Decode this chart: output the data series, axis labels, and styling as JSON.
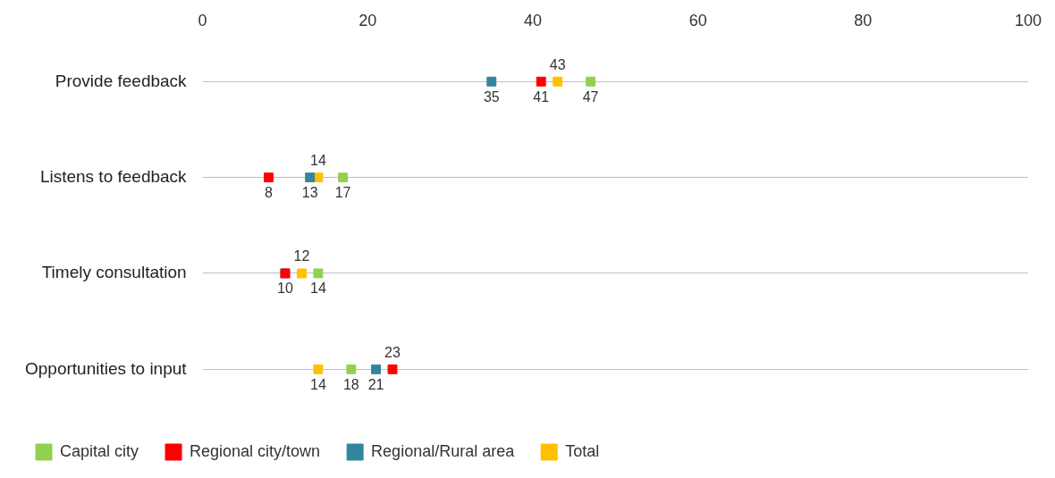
{
  "chart_data": {
    "type": "scatter",
    "orientation": "horizontal",
    "categories": [
      "Provide feedback",
      "Listens to feedback",
      "Timely consultation",
      "Opportunities to input"
    ],
    "series": [
      {
        "name": "Capital city",
        "color": "#92d050",
        "values": [
          47,
          17,
          14,
          18
        ],
        "value_labels": [
          "47",
          "17",
          "14",
          "18"
        ]
      },
      {
        "name": "Regional city/town",
        "color": "#ff0000",
        "values": [
          41,
          8,
          10,
          23
        ],
        "value_labels": [
          "41",
          "8",
          null,
          "23"
        ]
      },
      {
        "name": "Regional/Rural area",
        "color": "#31859c",
        "values": [
          35,
          13,
          10,
          21
        ],
        "value_labels": [
          "35",
          "13",
          "10",
          "21"
        ]
      },
      {
        "name": "Total",
        "color": "#ffc000",
        "values": [
          43,
          14,
          12,
          14
        ],
        "value_labels": [
          "43",
          "14",
          "12",
          "14"
        ]
      }
    ],
    "xlim": [
      0,
      100
    ],
    "xticks": [
      0,
      20,
      40,
      60,
      80,
      100
    ],
    "grid": "y",
    "legend": "bottom",
    "marker": "square"
  }
}
